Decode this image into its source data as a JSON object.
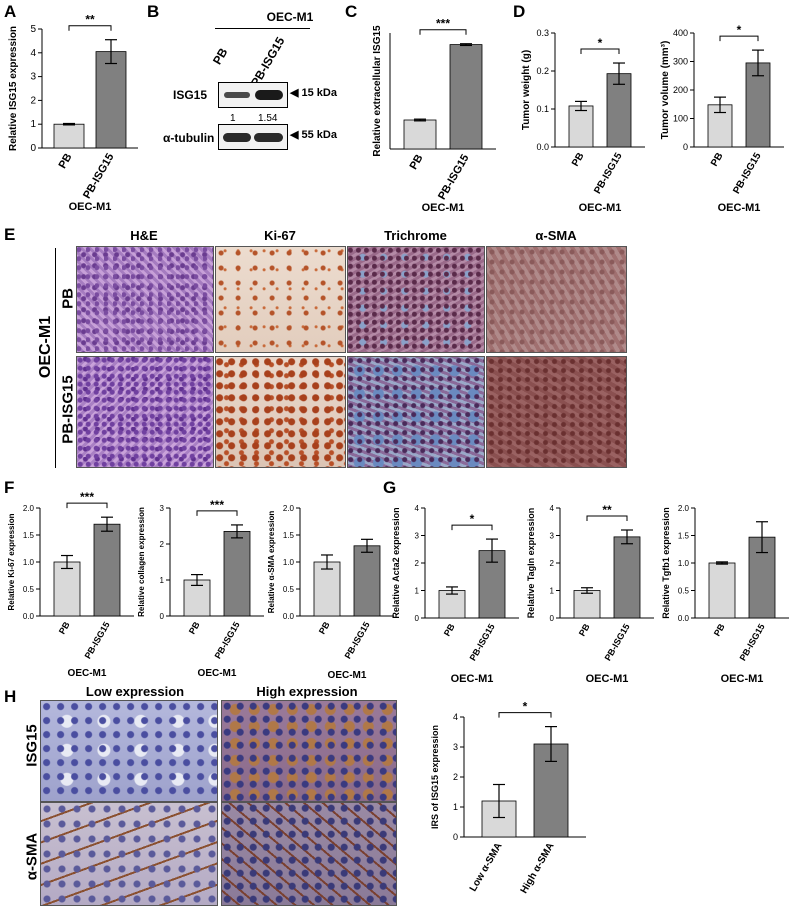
{
  "panel_letters": [
    "A",
    "B",
    "C",
    "D",
    "E",
    "F",
    "G",
    "H"
  ],
  "colors": {
    "light_bar": "#d9d9d9",
    "dark_bar": "#808080",
    "he": "#b089c9",
    "ki67": "#e9d5c6",
    "trichrome": "#8a5a7a",
    "asma": "#a07a7a",
    "h_ihc": "#9aa0c8"
  },
  "western": {
    "cell_line": "OEC-M1",
    "lanes": [
      "PB",
      "PB-ISG15"
    ],
    "rows": [
      {
        "label": "ISG15",
        "kda": "15 kDa"
      },
      {
        "label": "α-tubulin",
        "kda": "55 kDa"
      }
    ],
    "quant": [
      "1",
      "1.54"
    ]
  },
  "E": {
    "cell_line": "OEC-M1",
    "stains": [
      "H&E",
      "Ki-67",
      "Trichrome",
      "α-SMA"
    ],
    "rows": [
      "PB",
      "PB-ISG15"
    ]
  },
  "H": {
    "columns": [
      "Low expression",
      "High expression"
    ],
    "rows": [
      "ISG15",
      "α-SMA"
    ]
  },
  "chart_data": [
    {
      "panel": "A",
      "type": "bar",
      "categories": [
        "PB",
        "PB-ISG15"
      ],
      "values": [
        1.0,
        4.05
      ],
      "errors": [
        0.03,
        0.5
      ],
      "ylabel": "Relative ISG15 expression",
      "xlabel": "OEC-M1",
      "ylim": [
        0,
        5
      ],
      "yticks": [
        "0",
        "1",
        "2",
        "3",
        "4",
        "5"
      ],
      "sig": "**"
    },
    {
      "panel": "C",
      "type": "bar",
      "categories": [
        "PB",
        "PB-ISG15"
      ],
      "values": [
        1.0,
        3.6
      ],
      "errors": [
        0.03,
        0.03
      ],
      "ylabel": "Relative extracellular ISG15",
      "xlabel": "OEC-M1",
      "ylim": [
        0,
        4
      ],
      "yticks": [],
      "sig": "***"
    },
    {
      "panel": "D1",
      "type": "bar",
      "categories": [
        "PB",
        "PB-ISG15"
      ],
      "values": [
        0.108,
        0.193
      ],
      "errors": [
        0.012,
        0.028
      ],
      "ylabel": "Tumor weight (g)",
      "xlabel": "OEC-M1",
      "ylim": [
        0,
        0.3
      ],
      "yticks": [
        "0.0",
        "0.1",
        "0.2",
        "0.3"
      ],
      "sig": "*"
    },
    {
      "panel": "D2",
      "type": "bar",
      "categories": [
        "PB",
        "PB-ISG15"
      ],
      "values": [
        148,
        295
      ],
      "errors": [
        27,
        45
      ],
      "ylabel": "Tumor volume (mm³)",
      "xlabel": "OEC-M1",
      "ylim": [
        0,
        400
      ],
      "yticks": [
        "0",
        "100",
        "200",
        "300",
        "400"
      ],
      "sig": "*"
    },
    {
      "panel": "F1",
      "type": "bar",
      "categories": [
        "PB",
        "PB-ISG15"
      ],
      "values": [
        1.0,
        1.7
      ],
      "errors": [
        0.12,
        0.13
      ],
      "ylabel": "Relative Ki-67 expression",
      "xlabel": "OEC-M1",
      "ylim": [
        0,
        2.0
      ],
      "yticks": [
        "0.0",
        "0.5",
        "1.0",
        "1.5",
        "2.0"
      ],
      "sig": "***"
    },
    {
      "panel": "F2",
      "type": "bar",
      "categories": [
        "PB",
        "PB-ISG15"
      ],
      "values": [
        1.0,
        2.35
      ],
      "errors": [
        0.15,
        0.18
      ],
      "ylabel": "Relative collagen expression",
      "xlabel": "OEC-M1",
      "ylim": [
        0,
        3
      ],
      "yticks": [
        "0",
        "1",
        "2",
        "3"
      ],
      "sig": "***"
    },
    {
      "panel": "F3",
      "type": "bar",
      "categories": [
        "PB",
        "PB-ISG15"
      ],
      "values": [
        1.0,
        1.3
      ],
      "errors": [
        0.13,
        0.12
      ],
      "ylabel": "Relative α-SMA expression",
      "xlabel": "OEC-M1",
      "ylim": [
        0,
        2.0
      ],
      "yticks": [
        "0.0",
        "0.5",
        "1.0",
        "1.5",
        "2.0"
      ],
      "sig": ""
    },
    {
      "panel": "G1",
      "type": "bar",
      "categories": [
        "PB",
        "PB-ISG15"
      ],
      "values": [
        1.0,
        2.45
      ],
      "errors": [
        0.13,
        0.42
      ],
      "ylabel": "Relative Acta2 expression",
      "xlabel": "OEC-M1",
      "ylim": [
        0,
        4
      ],
      "yticks": [
        "0",
        "1",
        "2",
        "3",
        "4"
      ],
      "sig": "*"
    },
    {
      "panel": "G2",
      "type": "bar",
      "categories": [
        "PB",
        "PB-ISG15"
      ],
      "values": [
        1.0,
        2.95
      ],
      "errors": [
        0.1,
        0.25
      ],
      "ylabel": "Relative Tagln expression",
      "xlabel": "OEC-M1",
      "ylim": [
        0,
        4
      ],
      "yticks": [
        "0",
        "1",
        "2",
        "3",
        "4"
      ],
      "sig": "**"
    },
    {
      "panel": "G3",
      "type": "bar",
      "categories": [
        "PB",
        "PB-ISG15"
      ],
      "values": [
        1.0,
        1.47
      ],
      "errors": [
        0.02,
        0.28
      ],
      "ylabel": "Relative Tgfb1 expression",
      "xlabel": "OEC-M1",
      "ylim": [
        0,
        2.0
      ],
      "yticks": [
        "0.0",
        "0.5",
        "1.0",
        "1.5",
        "2.0"
      ],
      "sig": ""
    },
    {
      "panel": "H",
      "type": "bar",
      "categories": [
        "Low α-SMA",
        "High α-SMA"
      ],
      "values": [
        1.2,
        3.1
      ],
      "errors": [
        0.55,
        0.58
      ],
      "ylabel": "IRS of ISG15 expression",
      "xlabel": "",
      "ylim": [
        0,
        4
      ],
      "yticks": [
        "0",
        "1",
        "2",
        "3",
        "4"
      ],
      "sig": "*"
    }
  ]
}
